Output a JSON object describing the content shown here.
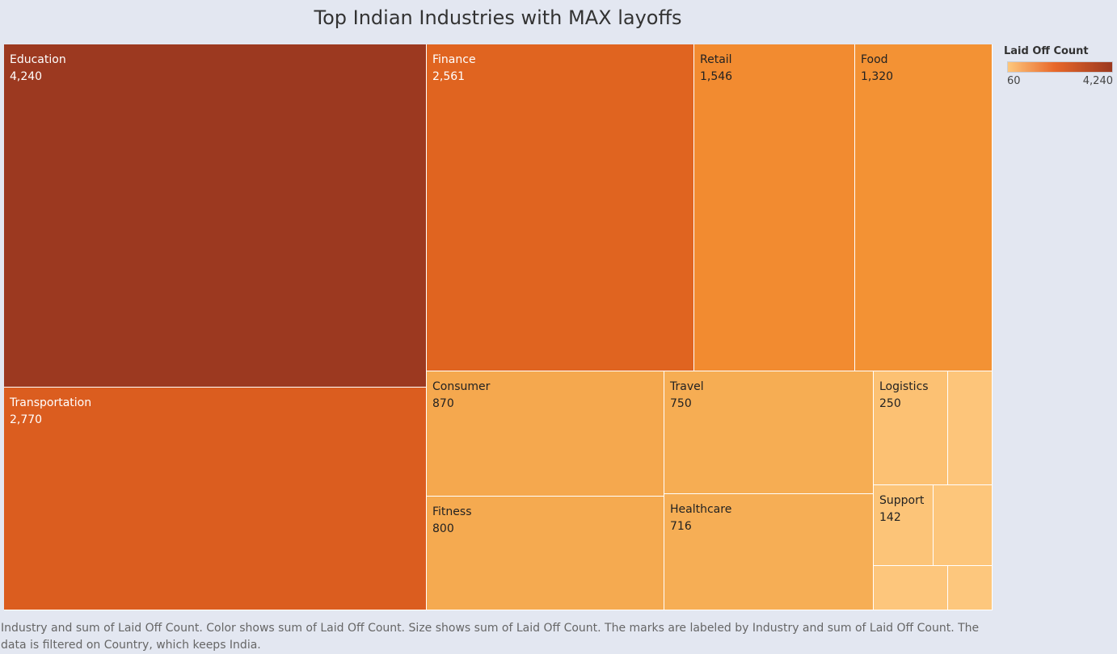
{
  "title": "Top Indian Industries with MAX layoffs",
  "legend": {
    "title": "Laid Off Count",
    "min_label": "60",
    "max_label": "4,240"
  },
  "caption": "Industry and sum of Laid Off Count.  Color shows sum of Laid Off Count.  Size shows sum of Laid Off Count.  The marks are labeled by Industry and sum of Laid Off Count. The data is filtered on Country, which keeps India.",
  "chart_data": {
    "type": "treemap",
    "title": "Top Indian Industries with MAX layoffs",
    "measure": "Laid Off Count",
    "color_scale": {
      "min": 60,
      "max": 4240,
      "low_color": "#fdc77d",
      "mid_color": "#e8682a",
      "high_color": "#9b3920"
    },
    "items": [
      {
        "label": "Education",
        "value": 4240,
        "value_label": "4,240",
        "color": "#9c3920",
        "text_color": "#ffffff"
      },
      {
        "label": "Transportation",
        "value": 2770,
        "value_label": "2,770",
        "color": "#db5d1f",
        "text_color": "#ffffff"
      },
      {
        "label": "Finance",
        "value": 2561,
        "value_label": "2,561",
        "color": "#e06420",
        "text_color": "#ffffff"
      },
      {
        "label": "Retail",
        "value": 1546,
        "value_label": "1,546",
        "color": "#f28b30",
        "text_color": "#222222"
      },
      {
        "label": "Food",
        "value": 1320,
        "value_label": "1,320",
        "color": "#f39234",
        "text_color": "#222222"
      },
      {
        "label": "Consumer",
        "value": 870,
        "value_label": "870",
        "color": "#f5a84e",
        "text_color": "#222222"
      },
      {
        "label": "Fitness",
        "value": 800,
        "value_label": "800",
        "color": "#f5aa50",
        "text_color": "#222222"
      },
      {
        "label": "Travel",
        "value": 750,
        "value_label": "750",
        "color": "#f6ad53",
        "text_color": "#222222"
      },
      {
        "label": "Healthcare",
        "value": 716,
        "value_label": "716",
        "color": "#f6ae55",
        "text_color": "#222222"
      },
      {
        "label": "Logistics",
        "value": 250,
        "value_label": "250",
        "color": "#fcc173",
        "text_color": "#222222"
      },
      {
        "label": "Support",
        "value": 142,
        "value_label": "142",
        "color": "#fcc478",
        "text_color": "#222222"
      },
      {
        "label": "",
        "value": 120,
        "value_label": "",
        "color": "#fdc57a",
        "text_color": "#222222"
      },
      {
        "label": "",
        "value": 100,
        "value_label": "",
        "color": "#fdc67b",
        "text_color": "#222222"
      },
      {
        "label": "",
        "value": 90,
        "value_label": "",
        "color": "#fdc67c",
        "text_color": "#222222"
      },
      {
        "label": "",
        "value": 60,
        "value_label": "",
        "color": "#fdc77d",
        "text_color": "#222222"
      }
    ]
  }
}
